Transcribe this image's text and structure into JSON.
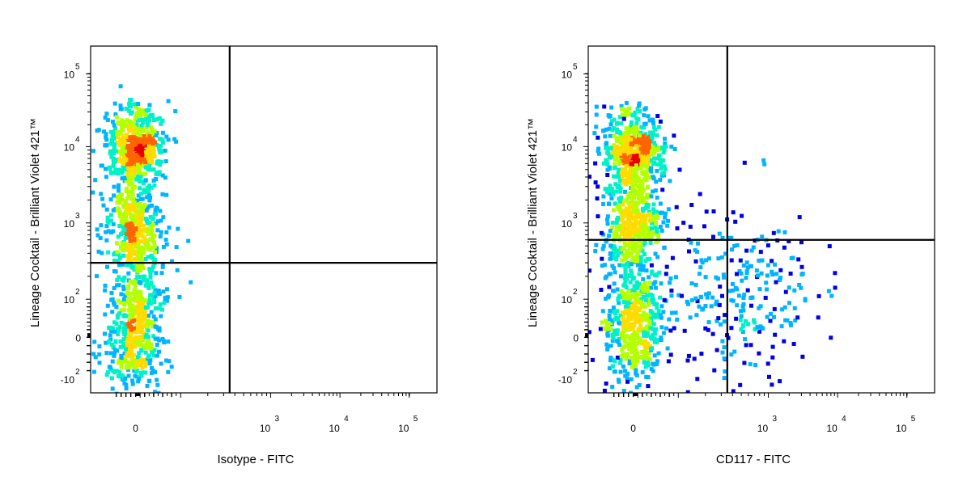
{
  "chart_data": [
    {
      "type": "scatter",
      "subtype": "flow-cytometry-pseudocolor-density",
      "xlabel": "Isotype - FITC",
      "ylabel": "Lineage Cocktail - Brilliant Violet 421™",
      "x_scale": "biexponential",
      "y_scale": "biexponential",
      "x_ticks": [
        {
          "value": 0,
          "label": "0",
          "exp": ""
        },
        {
          "value": 1000,
          "label": "10",
          "exp": "3"
        },
        {
          "value": 10000,
          "label": "10",
          "exp": "4"
        },
        {
          "value": 100000,
          "label": "10",
          "exp": "5"
        }
      ],
      "y_ticks": [
        {
          "value": -100,
          "label": "-10",
          "exp": "2"
        },
        {
          "value": 0,
          "label": "0",
          "exp": ""
        },
        {
          "value": 100,
          "label": "10",
          "exp": "2"
        },
        {
          "value": 1000,
          "label": "10",
          "exp": "3"
        },
        {
          "value": 10000,
          "label": "10",
          "exp": "4"
        },
        {
          "value": 100000,
          "label": "10",
          "exp": "5"
        }
      ],
      "quadrant_gate": {
        "x": 350,
        "y": 300
      },
      "populations": [
        {
          "x_center": 0,
          "y_center": 10000,
          "density": "highest"
        },
        {
          "x_center": 0,
          "y_center": 800,
          "density": "high"
        },
        {
          "x_center": 0,
          "y_center": 20,
          "density": "medium"
        }
      ],
      "density_colormap": [
        "#0000e6",
        "#00b4ff",
        "#00f0c8",
        "#b4ff00",
        "#ffdc00",
        "#ff6400",
        "#e60000"
      ],
      "grid": false,
      "legend": "none"
    },
    {
      "type": "scatter",
      "subtype": "flow-cytometry-pseudocolor-density",
      "xlabel": "CD117 - FITC",
      "ylabel": "Lineage Cocktail - Brilliant Violet 421™",
      "x_scale": "biexponential",
      "y_scale": "biexponential",
      "x_ticks": [
        {
          "value": 0,
          "label": "0",
          "exp": ""
        },
        {
          "value": 1000,
          "label": "10",
          "exp": "3"
        },
        {
          "value": 10000,
          "label": "10",
          "exp": "4"
        },
        {
          "value": 100000,
          "label": "10",
          "exp": "5"
        }
      ],
      "y_ticks": [
        {
          "value": -100,
          "label": "-10",
          "exp": "2"
        },
        {
          "value": 0,
          "label": "0",
          "exp": ""
        },
        {
          "value": 100,
          "label": "10",
          "exp": "2"
        },
        {
          "value": 1000,
          "label": "10",
          "exp": "3"
        },
        {
          "value": 10000,
          "label": "10",
          "exp": "4"
        },
        {
          "value": 100000,
          "label": "10",
          "exp": "5"
        }
      ],
      "quadrant_gate": {
        "x": 350,
        "y": 600
      },
      "populations": [
        {
          "x_center": 0,
          "y_center": 8000,
          "density": "highest"
        },
        {
          "x_center": 0,
          "y_center": 900,
          "density": "high"
        },
        {
          "x_center": 0,
          "y_center": 30,
          "density": "medium"
        },
        {
          "x_center": 500,
          "y_center": 100,
          "density": "low"
        }
      ],
      "density_colormap": [
        "#0000e6",
        "#00b4ff",
        "#00f0c8",
        "#b4ff00",
        "#ffdc00",
        "#ff6400",
        "#e60000"
      ],
      "grid": false,
      "legend": "none"
    }
  ]
}
